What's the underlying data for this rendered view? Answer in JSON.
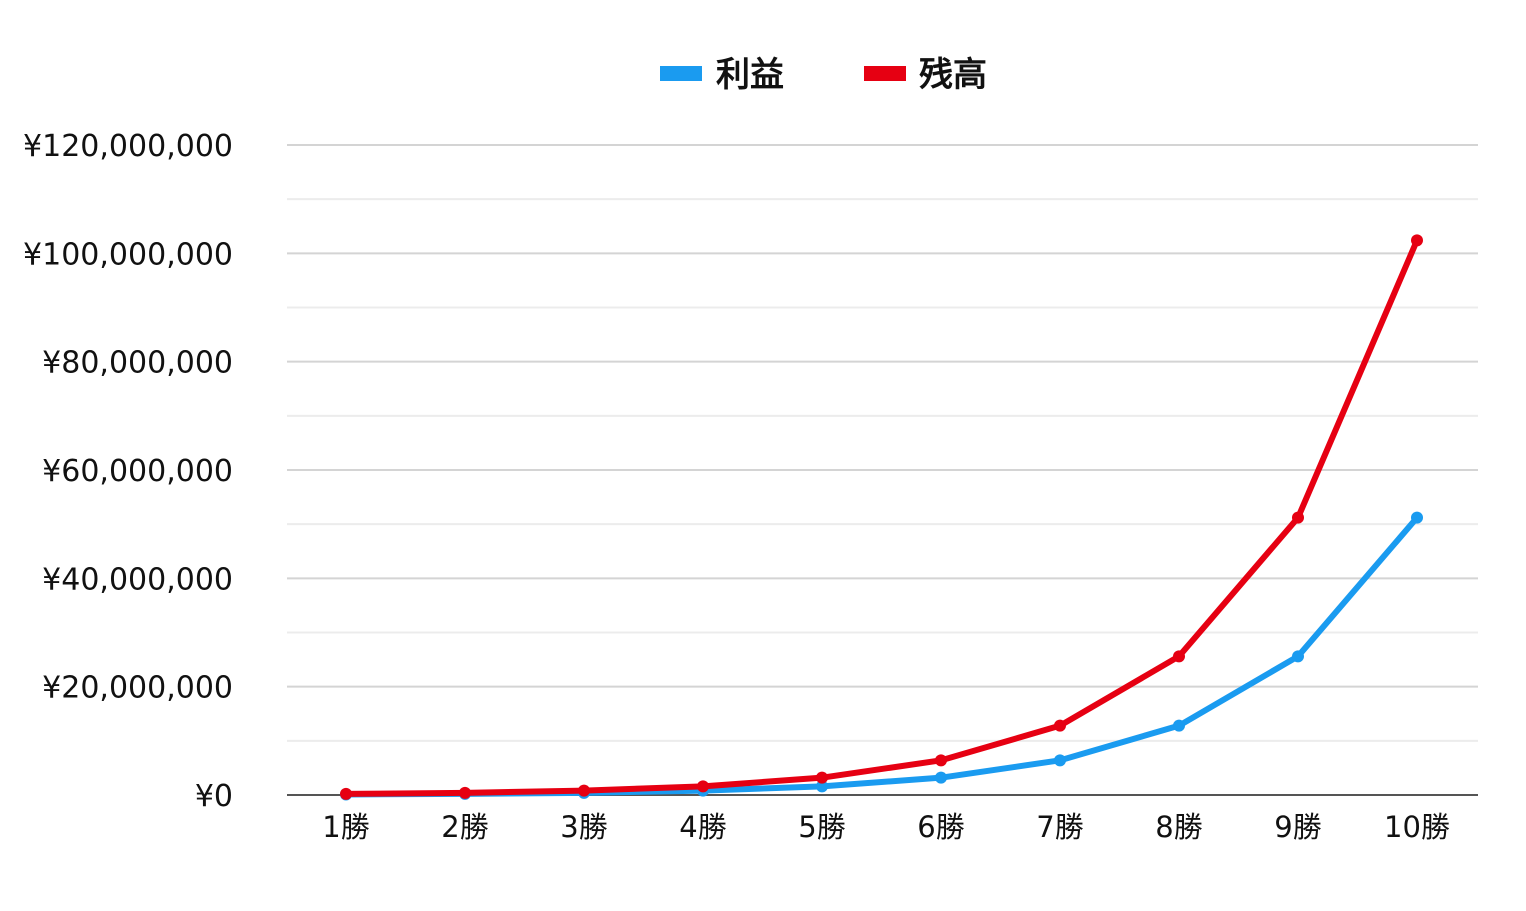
{
  "chart_data": {
    "type": "line",
    "title": "",
    "xlabel": "",
    "ylabel": "",
    "categories": [
      "1勝",
      "2勝",
      "3勝",
      "4勝",
      "5勝",
      "6勝",
      "7勝",
      "8勝",
      "9勝",
      "10勝"
    ],
    "ylim": [
      0,
      120000000
    ],
    "y_ticks": [
      0,
      20000000,
      40000000,
      60000000,
      80000000,
      100000000,
      120000000
    ],
    "y_tick_labels": [
      "¥0",
      "¥20,000,000",
      "¥40,000,000",
      "¥60,000,000",
      "¥80,000,000",
      "¥100,000,000",
      "¥120,000,000"
    ],
    "grid": true,
    "legend_position": "top-center",
    "series": [
      {
        "name": "利益",
        "color": "#1a9bf0",
        "values": [
          100000,
          200000,
          400000,
          800000,
          1600000,
          3200000,
          6400000,
          12800000,
          25600000,
          51200000
        ]
      },
      {
        "name": "残高",
        "color": "#e60012",
        "values": [
          200000,
          400000,
          800000,
          1600000,
          3200000,
          6400000,
          12800000,
          25600000,
          51200000,
          102400000
        ]
      }
    ]
  }
}
